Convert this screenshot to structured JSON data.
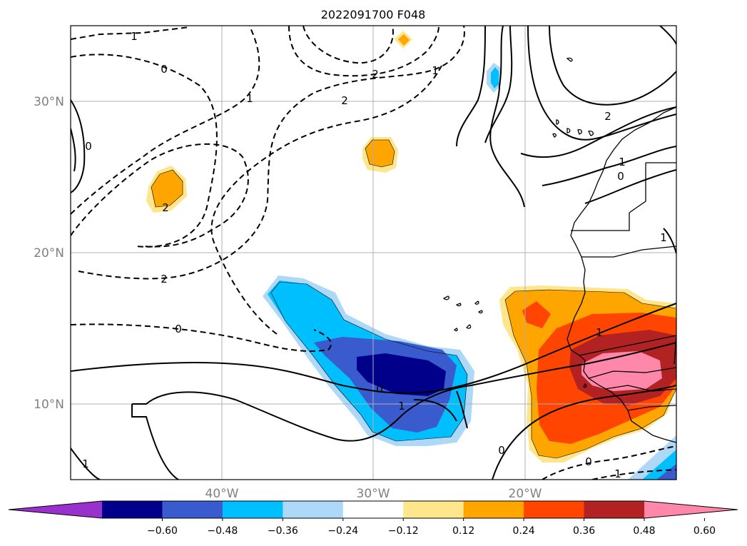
{
  "title": "2022091700 F048",
  "map": {
    "lat_ticks": [
      "30°N",
      "20°N",
      "10°N"
    ],
    "lon_ticks": [
      "40°W",
      "30°W",
      "20°W"
    ],
    "contour_labels": [
      "1",
      "0",
      "2",
      "2",
      "1",
      "2",
      "1",
      "0",
      "2",
      "2",
      "0",
      "1",
      "0",
      "1",
      "0",
      "0",
      "1",
      "1",
      "0",
      "1",
      "1"
    ]
  },
  "colorbar": {
    "tick_labels": [
      "−0.60",
      "−0.48",
      "−0.36",
      "−0.24",
      "−0.12",
      "0.12",
      "0.24",
      "0.36",
      "0.48",
      "0.60"
    ],
    "colors": [
      "#9932cc",
      "#00008b",
      "#3a5bcd",
      "#00bfff",
      "#add8f7",
      "#ffffff",
      "#ffe68c",
      "#ffa500",
      "#ff4500",
      "#b22222",
      "#ff88aa"
    ],
    "extend": "both"
  }
}
